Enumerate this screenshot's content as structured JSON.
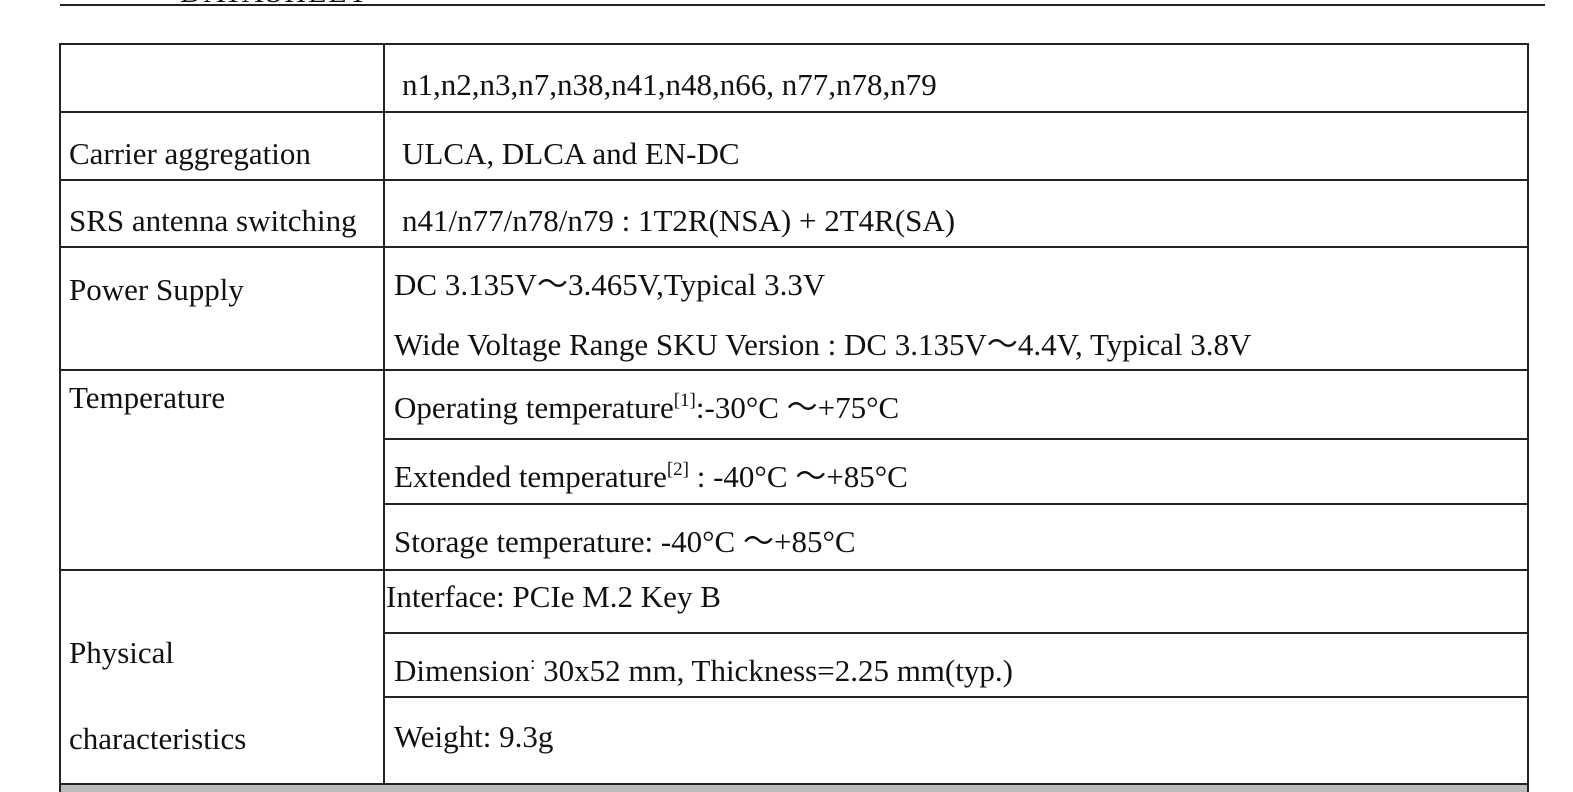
{
  "header": {
    "title": "DATASHEET"
  },
  "table": {
    "rows": [
      {
        "label": "",
        "values": [
          "n1,n2,n3,n7,n38,n41,n48,n66, n77,n78,n79"
        ]
      },
      {
        "label": "Carrier aggregation",
        "values": [
          "ULCA, DLCA and EN-DC"
        ]
      },
      {
        "label": "SRS antenna switching",
        "values": [
          "n41/n77/n78/n79 : 1T2R(NSA) + 2T4R(SA)"
        ]
      },
      {
        "label": "Power Supply",
        "values": [
          "DC 3.135V～3.465V,Typical 3.3V",
          "Wide Voltage Range SKU Version : DC 3.135V～4.4V, Typical 3.8V"
        ]
      },
      {
        "label": "Temperature",
        "values": [
          {
            "text": "Operating temperature",
            "sup": "[1]",
            "rest": ":-30°C ～+75°C"
          },
          {
            "text": "Extended temperature",
            "sup": "[2]",
            "rest": " : -40°C ～+85°C"
          },
          "Storage temperature: -40°C ～+85°C"
        ]
      },
      {
        "label": [
          "Physical",
          "characteristics"
        ],
        "values": [
          "Interface: PCIe M.2 Key B",
          {
            "text": "Dimension",
            "sup": ":",
            "rest": " 30x52 mm, Thickness=2.25 mm(typ.)"
          },
          "Weight: 9.3g"
        ]
      }
    ]
  }
}
